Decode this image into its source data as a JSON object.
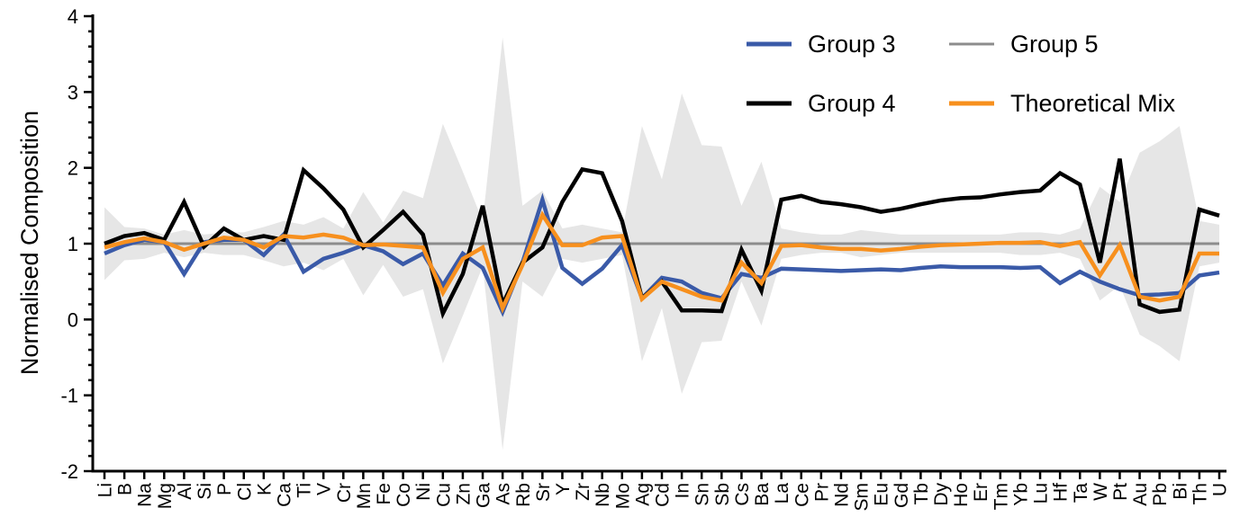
{
  "chart_data": {
    "type": "line",
    "ylabel": "Normalised Composition",
    "xlabel": "",
    "ylim": [
      -2,
      4
    ],
    "yticks": [
      "-2",
      "-1",
      "0",
      "1",
      "2",
      "3",
      "4"
    ],
    "grid": false,
    "legend_position": "top-right",
    "categories": [
      "Li",
      "B",
      "Na",
      "Mg",
      "Al",
      "Si",
      "P",
      "Cl",
      "K",
      "Ca",
      "Ti",
      "V",
      "Cr",
      "Mn",
      "Fe",
      "Co",
      "Ni",
      "Cu",
      "Zn",
      "Ga",
      "As",
      "Rb",
      "Sr",
      "Y",
      "Zr",
      "Nb",
      "Mo",
      "Ag",
      "Cd",
      "In",
      "Sn",
      "Sb",
      "Cs",
      "Ba",
      "La",
      "Ce",
      "Pr",
      "Nd",
      "Sm",
      "Eu",
      "Gd",
      "Tb",
      "Dy",
      "Ho",
      "Er",
      "Tm",
      "Yb",
      "Lu",
      "Hf",
      "Ta",
      "W",
      "Pt",
      "Au",
      "Pb",
      "Bi",
      "Th",
      "U"
    ],
    "band": {
      "color": "#e6e6e6",
      "upper": [
        1.48,
        1.22,
        1.2,
        1.12,
        1.18,
        1.12,
        1.15,
        1.15,
        1.22,
        1.3,
        1.25,
        1.35,
        1.2,
        1.68,
        1.28,
        1.7,
        1.6,
        2.58,
        1.95,
        1.3,
        3.72,
        1.5,
        1.7,
        1.2,
        1.25,
        1.2,
        1.15,
        2.55,
        1.85,
        2.98,
        2.3,
        2.28,
        1.5,
        2.08,
        1.2,
        1.15,
        1.12,
        1.12,
        1.18,
        1.15,
        1.12,
        1.12,
        1.12,
        1.12,
        1.12,
        1.12,
        1.15,
        1.15,
        1.12,
        1.2,
        1.75,
        1.55,
        2.2,
        2.35,
        2.55,
        1.3,
        1.25
      ],
      "lower": [
        0.52,
        0.78,
        0.8,
        0.88,
        0.82,
        0.88,
        0.85,
        0.85,
        0.78,
        0.7,
        0.75,
        0.65,
        0.8,
        0.32,
        0.72,
        0.3,
        0.4,
        -0.58,
        0.05,
        0.7,
        -1.72,
        0.5,
        0.3,
        0.8,
        0.75,
        0.8,
        0.85,
        -0.55,
        0.15,
        -0.98,
        -0.3,
        -0.28,
        0.5,
        -0.08,
        0.8,
        0.85,
        0.88,
        0.88,
        0.82,
        0.85,
        0.88,
        0.88,
        0.88,
        0.88,
        0.88,
        0.88,
        0.85,
        0.85,
        0.88,
        0.8,
        0.25,
        0.45,
        -0.2,
        -0.35,
        -0.55,
        0.7,
        0.75
      ]
    },
    "series": [
      {
        "name": "Group 5",
        "color": "#8c8c8c",
        "values": [
          1,
          1,
          1,
          1,
          1,
          1,
          1,
          1,
          1,
          1,
          1,
          1,
          1,
          1,
          1,
          1,
          1,
          1,
          1,
          1,
          1,
          1,
          1,
          1,
          1,
          1,
          1,
          1,
          1,
          1,
          1,
          1,
          1,
          1,
          1,
          1,
          1,
          1,
          1,
          1,
          1,
          1,
          1,
          1,
          1,
          1,
          1,
          1,
          1,
          1,
          1,
          1,
          1,
          1,
          1,
          1,
          1
        ]
      },
      {
        "name": "Group 3",
        "color": "#3a5aa8",
        "values": [
          0.87,
          0.98,
          1.05,
          1.02,
          0.6,
          1.02,
          1.05,
          1.05,
          0.85,
          1.12,
          0.63,
          0.8,
          0.88,
          0.98,
          0.9,
          0.73,
          0.87,
          0.45,
          0.87,
          0.68,
          0.1,
          0.75,
          1.58,
          0.68,
          0.47,
          0.67,
          0.98,
          0.28,
          0.55,
          0.5,
          0.35,
          0.28,
          0.6,
          0.55,
          0.67,
          0.66,
          0.65,
          0.64,
          0.65,
          0.66,
          0.65,
          0.68,
          0.7,
          0.69,
          0.69,
          0.69,
          0.68,
          0.69,
          0.48,
          0.63,
          0.5,
          0.4,
          0.32,
          0.33,
          0.35,
          0.58,
          0.62
        ]
      },
      {
        "name": "Group 4",
        "color": "#000000",
        "values": [
          1,
          1.1,
          1.14,
          1.05,
          1.55,
          0.96,
          1.2,
          1.05,
          1.1,
          1.05,
          1.97,
          1.73,
          1.45,
          0.95,
          1.18,
          1.42,
          1.12,
          0.08,
          0.6,
          1.5,
          0.2,
          0.75,
          0.95,
          1.55,
          1.98,
          1.93,
          1.3,
          0.28,
          0.5,
          0.12,
          0.12,
          0.11,
          0.92,
          0.38,
          1.58,
          1.63,
          1.55,
          1.52,
          1.48,
          1.42,
          1.46,
          1.52,
          1.57,
          1.6,
          1.61,
          1.65,
          1.68,
          1.7,
          1.93,
          1.78,
          0.75,
          2.12,
          0.2,
          0.1,
          0.13,
          1.45,
          1.37
        ]
      },
      {
        "name": "Theoretical Mix",
        "color": "#f7901e",
        "values": [
          0.95,
          1.02,
          1.07,
          1.02,
          0.92,
          1.0,
          1.08,
          1.05,
          0.95,
          1.1,
          1.08,
          1.12,
          1.08,
          0.98,
          0.99,
          0.97,
          0.95,
          0.35,
          0.8,
          0.95,
          0.15,
          0.72,
          1.38,
          0.98,
          0.98,
          1.08,
          1.1,
          0.27,
          0.5,
          0.4,
          0.3,
          0.25,
          0.75,
          0.48,
          0.97,
          0.98,
          0.95,
          0.93,
          0.93,
          0.91,
          0.93,
          0.96,
          0.98,
          0.99,
          1.0,
          1.01,
          1.01,
          1.02,
          0.97,
          1.02,
          0.58,
          0.98,
          0.3,
          0.25,
          0.3,
          0.87,
          0.87
        ]
      }
    ]
  }
}
